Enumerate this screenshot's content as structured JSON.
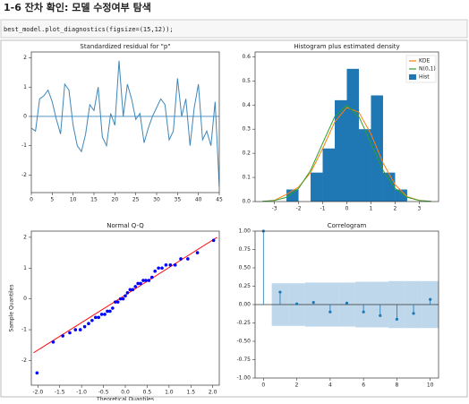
{
  "header": {
    "title": "1-6 잔차 확인: 모델 수정여부 탐색"
  },
  "code": "best_model.plot_diagnostics(figsize=(15,12));",
  "chart_data": [
    {
      "type": "line",
      "title": "Standardized residual for \"p\"",
      "color": "#3f86b8",
      "x": [
        0,
        1,
        2,
        3,
        4,
        5,
        6,
        7,
        8,
        9,
        10,
        11,
        12,
        13,
        14,
        15,
        16,
        17,
        18,
        19,
        20,
        21,
        22,
        23,
        24,
        25,
        26,
        27,
        28,
        29,
        30,
        31,
        32,
        33,
        34,
        35,
        36,
        37,
        38,
        39,
        40,
        41,
        42,
        43,
        44,
        45
      ],
      "values": [
        -0.4,
        -0.5,
        0.6,
        0.7,
        0.9,
        0.5,
        -0.1,
        -0.6,
        1.1,
        0.9,
        -0.3,
        -1.0,
        -1.2,
        -0.6,
        0.4,
        0.2,
        1.0,
        -0.7,
        -1.0,
        0.1,
        -0.3,
        1.9,
        0.0,
        1.1,
        0.6,
        -0.1,
        0.1,
        -0.9,
        -0.4,
        0.0,
        0.3,
        0.6,
        0.4,
        -0.8,
        -0.5,
        1.3,
        0.0,
        0.6,
        -1.0,
        0.3,
        1.1,
        -0.8,
        -0.5,
        -1.0,
        0.5,
        -2.4
      ],
      "hline": 0,
      "xlim": [
        0,
        45
      ],
      "ylim": [
        -2.6,
        2.2
      ],
      "xticks": [
        0,
        5,
        10,
        15,
        20,
        25,
        30,
        35,
        40,
        45
      ],
      "yticks": [
        -2,
        -1,
        0,
        1,
        2
      ]
    },
    {
      "type": "histogram",
      "title": "Histogram plus estimated density",
      "hist": {
        "name": "Hist",
        "color": "#1f77b4",
        "bins": [
          -2.5,
          -2.0,
          -1.5,
          -1.0,
          -0.5,
          0.0,
          0.5,
          1.0,
          1.5,
          2.0,
          2.5
        ],
        "values": [
          0.05,
          0,
          0.12,
          0.22,
          0.42,
          0.55,
          0.3,
          0.44,
          0.12,
          0.05
        ]
      },
      "series": [
        {
          "name": "KDE",
          "color": "#ff7f0e",
          "x": [
            -3.5,
            -3,
            -2.5,
            -2,
            -1.5,
            -1,
            -0.5,
            0,
            0.5,
            1,
            1.5,
            2,
            2.5,
            3,
            3.5
          ],
          "values": [
            0.0,
            0.005,
            0.03,
            0.06,
            0.12,
            0.22,
            0.33,
            0.39,
            0.37,
            0.28,
            0.16,
            0.07,
            0.02,
            0.005,
            0.0
          ]
        },
        {
          "name": "N(0,1)",
          "color": "#2ca02c",
          "x": [
            -3.5,
            -3,
            -2.5,
            -2,
            -1.5,
            -1,
            -0.5,
            0,
            0.5,
            1,
            1.5,
            2,
            2.5,
            3,
            3.5
          ],
          "values": [
            0.0009,
            0.0044,
            0.0175,
            0.054,
            0.1295,
            0.242,
            0.3521,
            0.3989,
            0.3521,
            0.242,
            0.1295,
            0.054,
            0.0175,
            0.0044,
            0.0009
          ]
        }
      ],
      "legend": "upper right",
      "xlim": [
        -3.8,
        3.8
      ],
      "ylim": [
        0,
        0.62
      ],
      "xticks": [
        -3,
        -2,
        -1,
        0,
        1,
        2,
        3
      ],
      "yticks": [
        {
          "value": 0,
          "label": "0.0"
        },
        {
          "value": 0.1,
          "label": "0.1"
        },
        {
          "value": 0.2,
          "label": "0.2"
        },
        {
          "value": 0.3,
          "label": "0.3"
        },
        {
          "value": 0.4,
          "label": "0.4"
        },
        {
          "value": 0.5,
          "label": "0.5"
        },
        {
          "value": 0.6,
          "label": "0.6"
        }
      ]
    },
    {
      "type": "scatter",
      "title": "Normal Q-Q",
      "color": "#0000ff",
      "xlabel": "Theoretical Quantiles",
      "ylabel": "Sample Quantiles",
      "x": [
        -2.02,
        -1.65,
        -1.43,
        -1.27,
        -1.14,
        -1.03,
        -0.93,
        -0.84,
        -0.76,
        -0.68,
        -0.61,
        -0.54,
        -0.47,
        -0.41,
        -0.35,
        -0.29,
        -0.23,
        -0.17,
        -0.11,
        -0.05,
        0.0,
        0.05,
        0.11,
        0.17,
        0.23,
        0.29,
        0.35,
        0.41,
        0.47,
        0.54,
        0.61,
        0.68,
        0.76,
        0.84,
        0.93,
        1.03,
        1.14,
        1.27,
        1.43,
        1.65,
        2.02
      ],
      "values": [
        -2.4,
        -1.4,
        -1.2,
        -1.1,
        -1.0,
        -1.0,
        -0.9,
        -0.8,
        -0.7,
        -0.6,
        -0.6,
        -0.5,
        -0.5,
        -0.4,
        -0.4,
        -0.3,
        -0.1,
        -0.1,
        0.0,
        0.0,
        0.1,
        0.2,
        0.3,
        0.3,
        0.4,
        0.5,
        0.5,
        0.6,
        0.6,
        0.6,
        0.7,
        0.9,
        1.0,
        1.0,
        1.1,
        1.1,
        1.1,
        1.3,
        1.3,
        1.5,
        1.9
      ],
      "reference_line": {
        "color": "#ff0000",
        "x": [
          -2.1,
          2.1
        ],
        "values": [
          -1.75,
          2.0
        ]
      },
      "xlim": [
        -2.15,
        2.15
      ],
      "ylim": [
        -2.8,
        2.2
      ],
      "xticks": [
        {
          "value": -2,
          "label": "-2.0"
        },
        {
          "value": -1.5,
          "label": "-1.5"
        },
        {
          "value": -1,
          "label": "-1.0"
        },
        {
          "value": -0.5,
          "label": "-0.5"
        },
        {
          "value": 0,
          "label": "0.0"
        },
        {
          "value": 0.5,
          "label": "0.5"
        },
        {
          "value": 1,
          "label": "1.0"
        },
        {
          "value": 1.5,
          "label": "1.5"
        },
        {
          "value": 2,
          "label": "2.0"
        }
      ],
      "yticks": [
        -2,
        -1,
        0,
        1,
        2
      ]
    },
    {
      "type": "stem",
      "title": "Correlogram",
      "color": "#1f77b4",
      "x": [
        0,
        1,
        2,
        3,
        4,
        5,
        6,
        7,
        8,
        9,
        10
      ],
      "values": [
        1.0,
        0.17,
        0.01,
        0.03,
        -0.1,
        0.02,
        -0.1,
        -0.15,
        -0.2,
        -0.12,
        0.07
      ],
      "band": {
        "color": "#aecde6",
        "x": [
          1,
          2,
          3,
          4,
          5,
          6,
          7,
          8,
          9,
          10
        ],
        "values": [
          0.29,
          0.29,
          0.3,
          0.3,
          0.3,
          0.31,
          0.31,
          0.32,
          0.32,
          0.32
        ]
      },
      "hline": 0,
      "xlim": [
        -0.5,
        10.5
      ],
      "ylim": [
        -1.0,
        1.0
      ],
      "xticks": [
        0,
        2,
        4,
        6,
        8,
        10
      ],
      "yticks": [
        {
          "value": -1,
          "label": "-1.00"
        },
        {
          "value": -0.75,
          "label": "-0.75"
        },
        {
          "value": -0.5,
          "label": "-0.50"
        },
        {
          "value": -0.25,
          "label": "-0.25"
        },
        {
          "value": 0,
          "label": "0.00"
        },
        {
          "value": 0.25,
          "label": "0.25"
        },
        {
          "value": 0.5,
          "label": "0.50"
        },
        {
          "value": 0.75,
          "label": "0.75"
        },
        {
          "value": 1,
          "label": "1.00"
        }
      ]
    }
  ]
}
